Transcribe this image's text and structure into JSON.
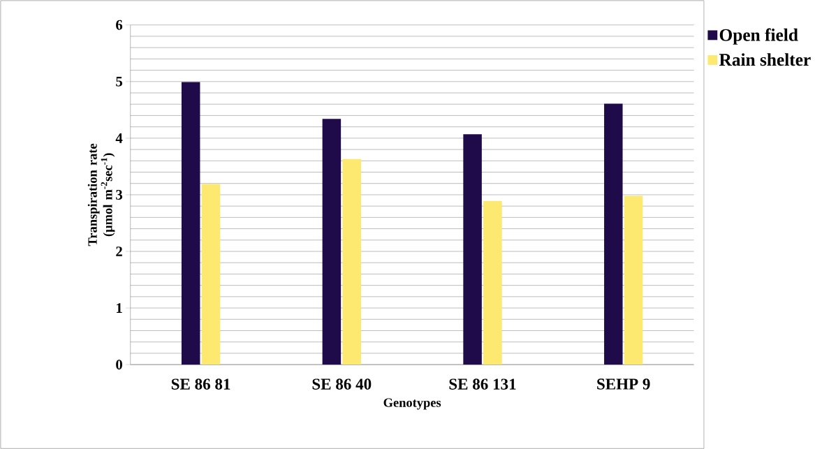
{
  "chart_data": {
    "type": "bar",
    "xlabel": "Genotypes",
    "ylabel": "Transpiration rate (µmol m$^{-2}$sec$^{-1}$)",
    "categories": [
      "SE 86 81",
      "SE 86 40",
      "SE 86 131",
      "SEHP 9"
    ],
    "series": [
      {
        "name": "Open field",
        "color": "#1f0a4a",
        "values": [
          4.99,
          4.34,
          4.07,
          4.61
        ]
      },
      {
        "name": "Rain shelter",
        "color": "#fde870",
        "values": [
          3.19,
          3.63,
          2.89,
          2.98
        ]
      }
    ],
    "ylim": [
      0,
      6
    ],
    "yticks": [
      0,
      1,
      2,
      3,
      4,
      5,
      6
    ],
    "grid": "y",
    "legend": "top right"
  }
}
